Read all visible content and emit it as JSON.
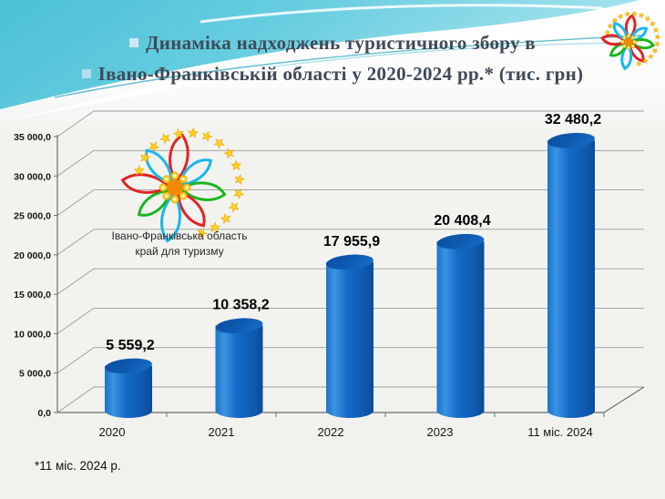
{
  "slide": {
    "title_line1": "Динаміка надходжень туристичного збору в",
    "title_line2": "Івано-Франківській області у 2020-2024 рр.* (тис. грн)",
    "footnote": "*11 міс. 2024 р.",
    "title_color": "#3f4a57",
    "header_teal_color": "#5ec9dc",
    "bullet_color": "#b9dcee"
  },
  "logo": {
    "line1": "Івано-Франківська область",
    "line2": "край для туризму",
    "petal_colors": [
      "#e02424",
      "#19b7ea",
      "#1cb51c"
    ],
    "star_color": "#ffd21e",
    "center_color": "#f28a00"
  },
  "chart_data": {
    "type": "bar",
    "style": "3d-cylinder",
    "title": "",
    "xlabel": "",
    "ylabel": "",
    "categories": [
      "2020",
      "2021",
      "2022",
      "2023",
      "11 міс. 2024"
    ],
    "values": [
      5559.2,
      10358.2,
      17955.9,
      20408.4,
      32480.2
    ],
    "value_labels": [
      "5 559,2",
      "10 358,2",
      "17 955,9",
      "20 408,4",
      "32 480,2"
    ],
    "ytick_values": [
      0,
      5000,
      10000,
      15000,
      20000,
      25000,
      30000,
      35000
    ],
    "ytick_labels": [
      "0,0",
      "5 000,0",
      "10 000,0",
      "15 000,0",
      "20 000,0",
      "25 000,0",
      "30 000,0",
      "35 000,0"
    ],
    "ylim": [
      0,
      35000
    ],
    "grid": true,
    "legend": false,
    "bar_color": "#1266c4",
    "bar_top_color": "#0b56ac",
    "gridline_color": "#9b9b9b"
  }
}
